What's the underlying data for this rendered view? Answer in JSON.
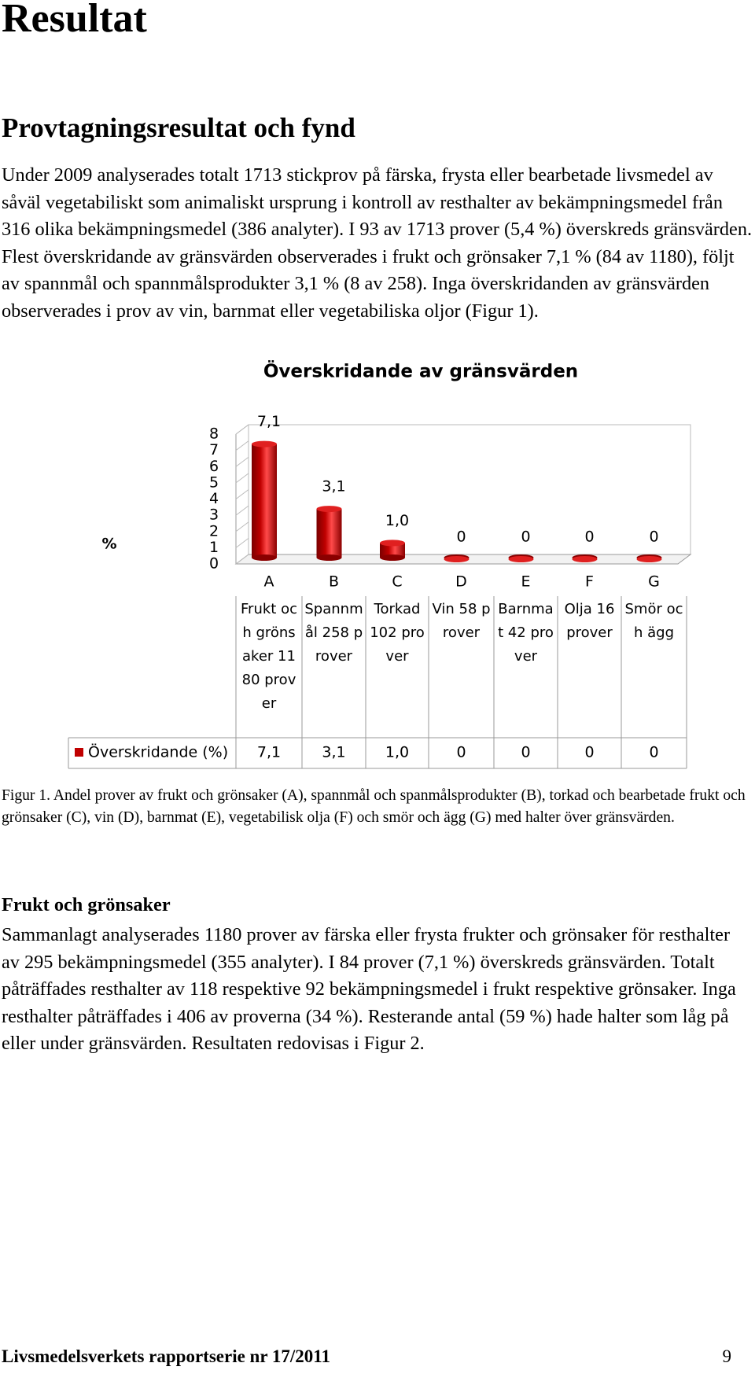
{
  "header": {
    "title": "Resultat"
  },
  "section": {
    "heading": "Provtagningsresultat och fynd",
    "paragraph": "Under 2009 analyserades totalt 1713 stickprov på färska, frysta eller bearbetade livsmedel av såväl vegetabiliskt som animaliskt ursprung i kontroll av resthalter av bekämpningsmedel från 316 olika bekämpningsmedel (386 analyter). I 93 av 1713 prover (5,4 %) överskreds gränsvärden. Flest överskridande av gränsvärden observerades i frukt och grönsaker 7,1 % (84 av 1180), följt av spannmål och spannmålsprodukter 3,1 % (8 av 258). Inga överskridanden av gränsvärden observerades i prov av vin, barnmat eller vegetabiliska oljor (Figur 1)."
  },
  "chart_data": {
    "type": "bar",
    "title": "Överskridande av gränsvärden",
    "y_label": "%",
    "categories": [
      "A",
      "B",
      "C",
      "D",
      "E",
      "F",
      "G"
    ],
    "category_descriptions": [
      "Frukt och grönsaker 1180 prover",
      "Spannmål 258 prover",
      "Torkad 102 prover",
      "Vin 58 prover",
      "Barnmat 42 prover",
      "Olja 16 prover",
      "Smör och ägg"
    ],
    "series": [
      {
        "name": "Överskridande (%)",
        "color": "#c00000",
        "values": [
          7.1,
          3.1,
          1.0,
          0,
          0,
          0,
          0
        ],
        "value_labels": [
          "7,1",
          "3,1",
          "1,0",
          "0",
          "0",
          "0",
          "0"
        ]
      }
    ],
    "ylim": [
      0,
      8
    ],
    "yticks": [
      0,
      1,
      2,
      3,
      4,
      5,
      6,
      7,
      8
    ],
    "grid": true,
    "data_table": true
  },
  "caption": "Figur 1. Andel prover av frukt och grönsaker (A), spannmål och spanmålsprodukter (B), torkad och bearbetade frukt och grönsaker (C), vin (D), barnmat (E), vegetabilisk olja (F) och smör och ägg (G) med halter över gränsvärden.",
  "subsection": {
    "heading": "Frukt och grönsaker",
    "paragraph": "Sammanlagt analyserades 1180 prover av färska eller frysta frukter och grönsaker för resthalter av 295 bekämpningsmedel (355 analyter). I 84 prover (7,1 %) överskreds gränsvärden. Totalt påträffades resthalter av 118 respektive 92 bekämpningsmedel i frukt respektive grönsaker. Inga resthalter påträffades i 406 av proverna (34 %). Resterande antal (59 %) hade halter som låg på eller under gränsvärden. Resultaten redovisas i Figur 2."
  },
  "footer": {
    "series": "Livsmedelsverkets rapportserie nr 17/2011",
    "page": "9"
  }
}
